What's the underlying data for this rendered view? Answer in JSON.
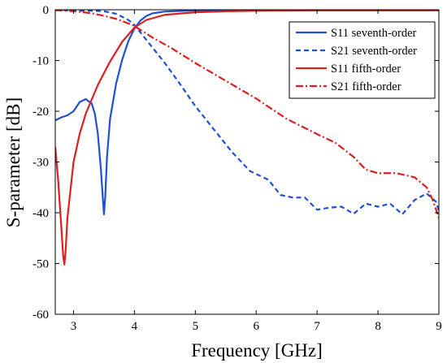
{
  "chart_data": {
    "type": "line",
    "title": "",
    "xlabel": "Frequency [GHz]",
    "ylabel": "S-parameter [dB]",
    "xlim": [
      2.7,
      9
    ],
    "ylim": [
      -60,
      0
    ],
    "xticks": [
      3,
      4,
      5,
      6,
      7,
      8,
      9
    ],
    "yticks": [
      0,
      -10,
      -20,
      -30,
      -40,
      -50,
      -60
    ],
    "grid": false,
    "legend_position": "top-right",
    "series": [
      {
        "name": "S11 seventh-order",
        "color": "#1f4fd6",
        "dash": "solid",
        "x": [
          2.7,
          2.8,
          2.9,
          3.0,
          3.1,
          3.2,
          3.3,
          3.35,
          3.4,
          3.45,
          3.48,
          3.5,
          3.52,
          3.55,
          3.6,
          3.7,
          3.8,
          3.9,
          4.0,
          4.1,
          4.2,
          4.3,
          4.5,
          5.0,
          6.0,
          7.0,
          8.0,
          9.0
        ],
        "y": [
          -21.8,
          -21.2,
          -20.8,
          -20.0,
          -18.2,
          -17.6,
          -18.5,
          -20.5,
          -24.5,
          -31.5,
          -37.0,
          -40.3,
          -37.0,
          -29.0,
          -21.5,
          -14.5,
          -9.8,
          -6.2,
          -3.7,
          -2.1,
          -1.2,
          -0.7,
          -0.35,
          -0.15,
          -0.1,
          -0.1,
          -0.1,
          -0.1
        ]
      },
      {
        "name": "S21 seventh-order",
        "color": "#1f4fd6",
        "dash": "dashed",
        "x": [
          2.7,
          3.0,
          3.3,
          3.5,
          3.7,
          3.9,
          4.0,
          4.2,
          4.5,
          4.8,
          5.0,
          5.3,
          5.6,
          5.9,
          6.2,
          6.4,
          6.6,
          6.8,
          7.0,
          7.2,
          7.4,
          7.6,
          7.8,
          8.0,
          8.2,
          8.4,
          8.6,
          8.8,
          8.95,
          9.0
        ],
        "y": [
          0,
          -0.2,
          -0.2,
          -0.3,
          -0.8,
          -2.0,
          -3.0,
          -6.0,
          -10.5,
          -15.5,
          -19.0,
          -23.5,
          -28.0,
          -31.8,
          -33.5,
          -36.5,
          -37.0,
          -37.0,
          -39.4,
          -39.0,
          -38.8,
          -40.2,
          -38.2,
          -38.8,
          -38.2,
          -40.3,
          -37.5,
          -36.2,
          -37.8,
          -39.5
        ]
      },
      {
        "name": "S11 fifth-order",
        "color": "#dc1f1f",
        "dash": "solid",
        "x": [
          2.7,
          2.75,
          2.8,
          2.83,
          2.85,
          2.87,
          2.9,
          3.0,
          3.1,
          3.2,
          3.4,
          3.6,
          3.8,
          4.0,
          4.2,
          4.5,
          5.0,
          5.5,
          6.0,
          7.0,
          8.0,
          9.0
        ],
        "y": [
          -27.0,
          -34.0,
          -43.0,
          -48.5,
          -50.2,
          -47.5,
          -41.0,
          -30.0,
          -24.5,
          -20.5,
          -14.8,
          -10.2,
          -6.3,
          -3.5,
          -2.0,
          -1.0,
          -0.5,
          -0.3,
          -0.2,
          -0.15,
          -0.15,
          -0.15
        ]
      },
      {
        "name": "S21 fifth-order",
        "color": "#dc1f1f",
        "dash": "dashdot",
        "x": [
          2.7,
          2.9,
          3.1,
          3.3,
          3.5,
          3.7,
          3.9,
          4.0,
          4.3,
          4.6,
          5.0,
          5.5,
          6.0,
          6.5,
          7.0,
          7.3,
          7.6,
          7.8,
          8.0,
          8.3,
          8.6,
          8.8,
          8.9,
          9.0
        ],
        "y": [
          -0.1,
          -0.2,
          -0.4,
          -0.7,
          -1.2,
          -1.8,
          -2.7,
          -3.2,
          -5.5,
          -7.5,
          -10.5,
          -14.0,
          -17.5,
          -21.5,
          -24.5,
          -26.2,
          -29.0,
          -31.5,
          -32.2,
          -32.2,
          -33.0,
          -35.0,
          -37.5,
          -41.0
        ]
      }
    ]
  }
}
